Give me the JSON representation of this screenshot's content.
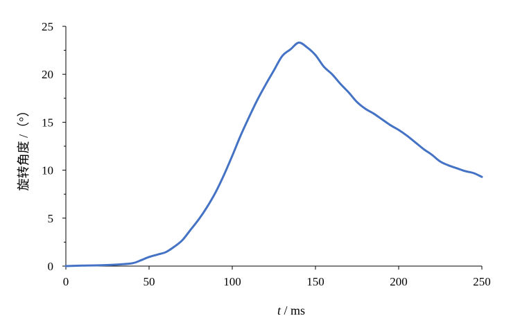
{
  "chart_data": {
    "type": "line",
    "title": "",
    "xlabel_var": "t",
    "xlabel_unit": " / ms",
    "ylabel": "旋转角度 /（°）",
    "xlim": [
      0,
      250
    ],
    "ylim": [
      0,
      25
    ],
    "xticks": [
      0,
      50,
      100,
      150,
      200,
      250
    ],
    "yticks": [
      0,
      5,
      10,
      15,
      20,
      25
    ],
    "xtick_labels": [
      "0",
      "50",
      "100",
      "150",
      "200",
      "250"
    ],
    "ytick_labels": [
      "0",
      "5",
      "10",
      "15",
      "20",
      "25"
    ],
    "grid": false,
    "legend": "none",
    "series": [
      {
        "color": "#4472C4",
        "x": [
          0,
          10,
          20,
          30,
          40,
          45,
          50,
          55,
          60,
          65,
          70,
          75,
          80,
          85,
          90,
          95,
          100,
          105,
          110,
          115,
          120,
          125,
          130,
          135,
          140,
          145,
          150,
          155,
          160,
          165,
          170,
          175,
          180,
          185,
          190,
          195,
          200,
          205,
          210,
          215,
          220,
          225,
          230,
          235,
          240,
          245,
          250
        ],
        "y": [
          0,
          0.05,
          0.08,
          0.15,
          0.3,
          0.6,
          0.95,
          1.2,
          1.45,
          2.0,
          2.7,
          3.8,
          4.9,
          6.2,
          7.7,
          9.5,
          11.5,
          13.6,
          15.5,
          17.3,
          18.9,
          20.4,
          21.9,
          22.6,
          23.3,
          22.8,
          22.0,
          20.8,
          20.0,
          19.0,
          18.1,
          17.1,
          16.4,
          15.9,
          15.3,
          14.7,
          14.2,
          13.6,
          12.9,
          12.2,
          11.6,
          10.9,
          10.5,
          10.2,
          9.9,
          9.7,
          9.3
        ]
      }
    ]
  }
}
